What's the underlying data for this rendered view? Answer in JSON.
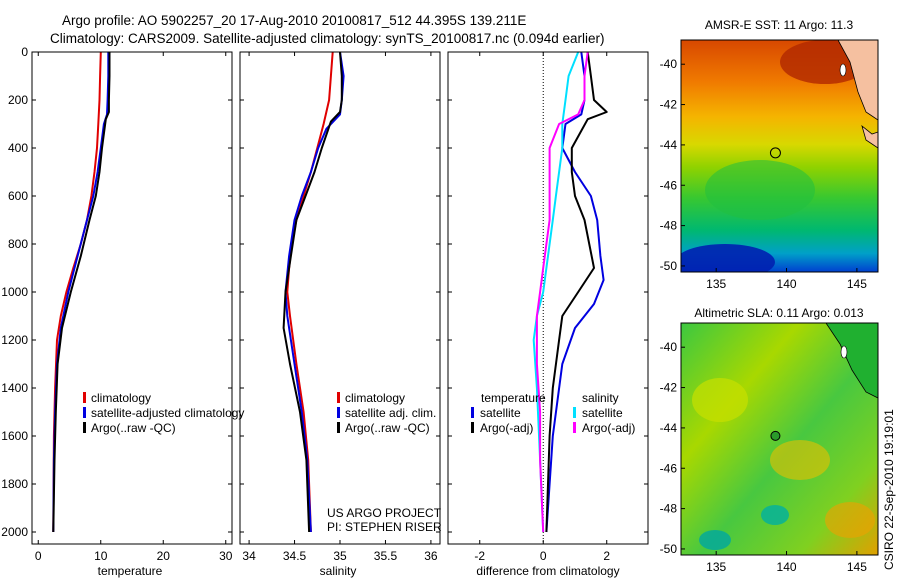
{
  "header": {
    "line1": "Argo profile: AO 5902257_20 17-Aug-2010 20100817_512 44.395S 139.211E",
    "line2": "Climatology: CARS2009. Satellite-adjusted climatology: synTS_20100817.nc (0.094d earlier)"
  },
  "side_text": "CSIRO 22-Sep-2010 19:19:01",
  "colors": {
    "red": "#e00000",
    "blue": "#0000e0",
    "black": "#000000",
    "cyan": "#00e0ff",
    "magenta": "#ff00ff"
  },
  "chart_data": [
    {
      "type": "line",
      "name": "temperature-panel",
      "xlabel": "temperature",
      "xlim": [
        -1,
        31
      ],
      "ylim": [
        2050,
        0
      ],
      "xticks": [
        0,
        10,
        20,
        30
      ],
      "yticks": [
        0,
        200,
        400,
        600,
        800,
        1000,
        1200,
        1400,
        1600,
        1800,
        2000
      ],
      "legend": [
        "climatology",
        "satellite-adjusted climatology",
        "Argo(..raw -QC)"
      ],
      "series": [
        {
          "name": "climatology",
          "color": "red",
          "x": [
            10.0,
            9.9,
            9.8,
            9.6,
            9.4,
            9.0,
            8.5,
            7.8,
            6.8,
            5.6,
            4.5,
            3.6,
            3.0,
            2.7,
            2.5,
            2.4
          ],
          "y": [
            0,
            100,
            200,
            300,
            400,
            500,
            600,
            700,
            800,
            900,
            1000,
            1100,
            1200,
            1400,
            1600,
            2000
          ]
        },
        {
          "name": "satellite-adjusted climatology",
          "color": "blue",
          "x": [
            11.2,
            11.2,
            11.1,
            11.0,
            10.5,
            10.0,
            9.5,
            8.8,
            7.8,
            6.3,
            4.8,
            3.6,
            3.0,
            2.7,
            2.5,
            2.4
          ],
          "y": [
            0,
            100,
            200,
            260,
            300,
            400,
            500,
            600,
            700,
            850,
            1000,
            1150,
            1300,
            1500,
            1700,
            2000
          ]
        },
        {
          "name": "Argo(..raw -QC)",
          "color": "black",
          "x": [
            11.4,
            11.4,
            11.3,
            11.3,
            10.8,
            10.2,
            9.8,
            9.2,
            8.2,
            6.8,
            5.2,
            3.8,
            3.1,
            2.8,
            2.6,
            2.4
          ],
          "y": [
            0,
            100,
            200,
            250,
            280,
            400,
            500,
            600,
            700,
            850,
            1000,
            1150,
            1300,
            1500,
            1700,
            2000
          ]
        }
      ]
    },
    {
      "type": "line",
      "name": "salinity-panel",
      "xlabel": "salinity",
      "xlim": [
        33.9,
        36.1
      ],
      "ylim": [
        2050,
        0
      ],
      "xticks": [
        34,
        34.5,
        35,
        35.5,
        36
      ],
      "legend": [
        "climatology",
        "satellite adj. clim.",
        "Argo(..raw -QC)"
      ],
      "annotation": [
        "US ARGO PROJECT",
        "PI: STEPHEN RISER"
      ],
      "series": [
        {
          "name": "climatology",
          "color": "red",
          "x": [
            34.92,
            34.9,
            34.88,
            34.82,
            34.75,
            34.68,
            34.6,
            34.52,
            34.47,
            34.44,
            34.42,
            34.45,
            34.52,
            34.6,
            34.65,
            34.68
          ],
          "y": [
            0,
            100,
            200,
            300,
            400,
            500,
            600,
            700,
            800,
            900,
            1000,
            1100,
            1300,
            1500,
            1700,
            2000
          ]
        },
        {
          "name": "satellite adj. clim.",
          "color": "blue",
          "x": [
            35.0,
            35.04,
            35.02,
            35.0,
            34.85,
            34.76,
            34.68,
            34.58,
            34.5,
            34.44,
            34.4,
            34.42,
            34.5,
            34.58,
            34.64,
            34.68
          ],
          "y": [
            0,
            100,
            200,
            260,
            320,
            400,
            500,
            600,
            700,
            850,
            1000,
            1100,
            1300,
            1500,
            1700,
            2000
          ]
        },
        {
          "name": "Argo(..raw -QC)",
          "color": "black",
          "x": [
            35.0,
            35.02,
            35.02,
            35.0,
            34.9,
            34.8,
            34.72,
            34.62,
            34.52,
            34.46,
            34.4,
            34.38,
            34.45,
            34.56,
            34.63,
            34.66
          ],
          "y": [
            0,
            100,
            200,
            250,
            290,
            400,
            500,
            600,
            700,
            850,
            1000,
            1150,
            1300,
            1500,
            1700,
            2000
          ]
        }
      ]
    },
    {
      "type": "line",
      "name": "difference-panel",
      "xlabel": "difference from climatology",
      "xlim": [
        -3,
        3.3
      ],
      "ylim": [
        2050,
        0
      ],
      "xticks": [
        -2,
        0,
        2
      ],
      "zero_line": true,
      "legend_groups": [
        {
          "title": "temperature",
          "items": [
            "satellite",
            "Argo(-adj)"
          ]
        },
        {
          "title": "salinity",
          "items": [
            "satellite",
            "Argo(-adj)"
          ]
        }
      ],
      "series": [
        {
          "name": "temperature satellite",
          "color": "blue",
          "x": [
            1.2,
            1.3,
            1.3,
            1.2,
            0.7,
            0.6,
            1.0,
            1.5,
            1.7,
            1.8,
            1.9,
            1.6,
            1.0,
            0.6,
            0.3,
            0.1
          ],
          "y": [
            0,
            100,
            200,
            260,
            300,
            400,
            500,
            600,
            700,
            850,
            950,
            1050,
            1150,
            1300,
            1600,
            2000
          ]
        },
        {
          "name": "temperature Argo(-adj)",
          "color": "black",
          "x": [
            1.4,
            1.5,
            1.6,
            2.0,
            1.4,
            0.9,
            0.9,
            1.0,
            1.3,
            1.6,
            1.1,
            0.6,
            0.5,
            0.3,
            0.2,
            0.1
          ],
          "y": [
            0,
            100,
            200,
            250,
            280,
            400,
            500,
            600,
            700,
            900,
            1000,
            1100,
            1200,
            1400,
            1600,
            2000
          ]
        },
        {
          "name": "salinity satellite",
          "color": "cyan",
          "x": [
            1.1,
            0.8,
            0.7,
            0.6,
            0.6,
            0.5,
            0.4,
            0.3,
            0.2,
            0.1,
            0.0,
            -0.2,
            -0.3,
            -0.2,
            -0.1,
            0.0
          ],
          "y": [
            0,
            100,
            200,
            300,
            400,
            500,
            600,
            700,
            800,
            900,
            1000,
            1100,
            1200,
            1400,
            1700,
            2000
          ]
        },
        {
          "name": "salinity Argo(-adj)",
          "color": "magenta",
          "x": [
            1.4,
            1.3,
            1.3,
            1.1,
            0.5,
            0.2,
            0.2,
            0.2,
            0.2,
            0.0,
            -0.1,
            -0.2,
            -0.2,
            -0.1,
            -0.1,
            0.0
          ],
          "y": [
            0,
            100,
            200,
            260,
            300,
            400,
            500,
            600,
            700,
            900,
            1000,
            1100,
            1300,
            1500,
            1700,
            2000
          ]
        }
      ]
    }
  ],
  "maps": [
    {
      "name": "sst-map",
      "title": "AMSR-E SST: 11 Argo: 11.3",
      "xlim": [
        132.5,
        146.5
      ],
      "ylim": [
        -50.3,
        -38.8
      ],
      "xticks": [
        135,
        140,
        145
      ],
      "yticks": [
        -40,
        -42,
        -44,
        -46,
        -48,
        -50
      ],
      "marker": {
        "lon": 139.211,
        "lat": -44.395
      }
    },
    {
      "name": "sla-map",
      "title": "Altimetric SLA: 0.11 Argo: 0.013",
      "xlim": [
        132.5,
        146.5
      ],
      "ylim": [
        -50.3,
        -38.8
      ],
      "xticks": [
        135,
        140,
        145
      ],
      "yticks": [
        -40,
        -42,
        -44,
        -46,
        -48,
        -50
      ],
      "marker": {
        "lon": 139.211,
        "lat": -44.395
      }
    }
  ]
}
